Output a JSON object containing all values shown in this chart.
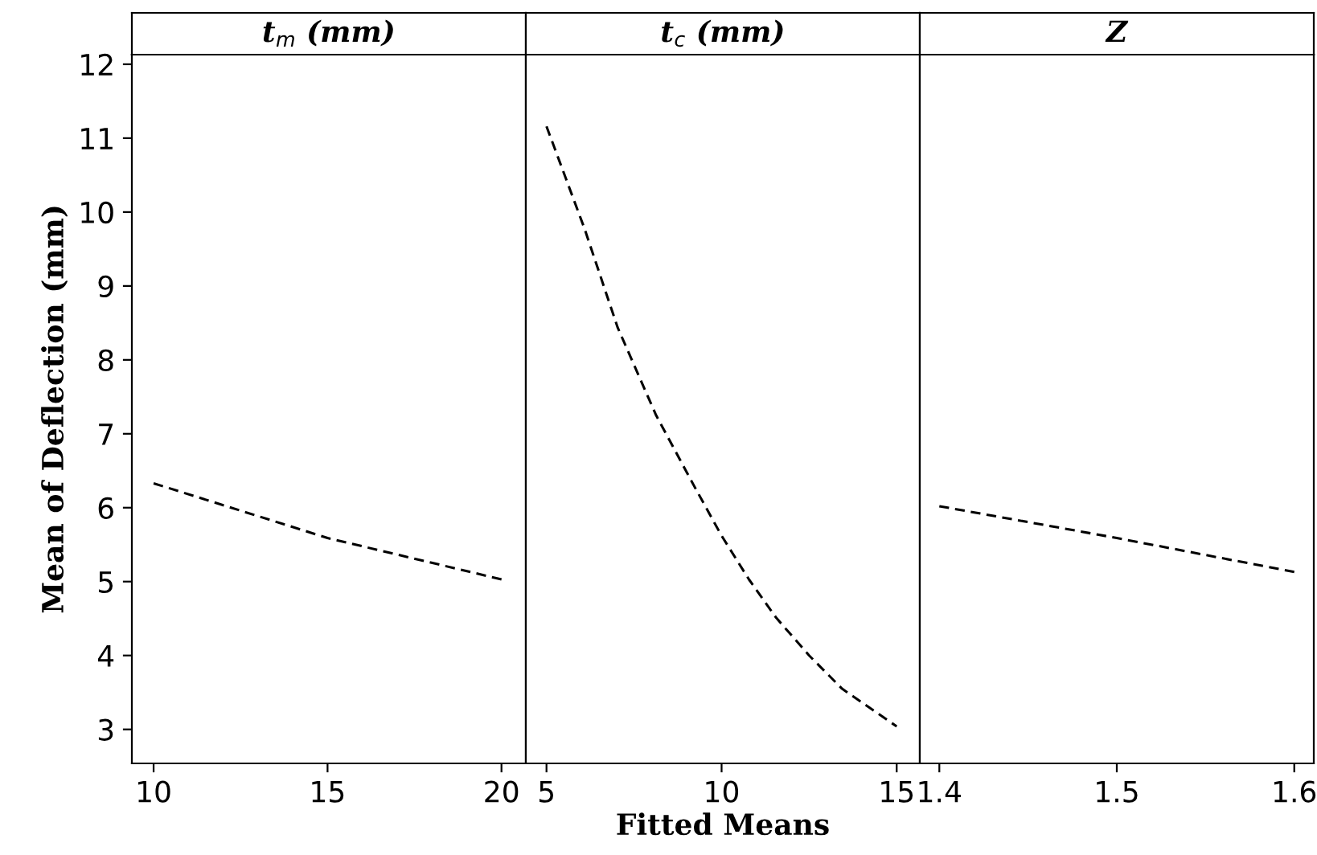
{
  "chart_data": [
    {
      "type": "line",
      "title": "t$_{m}$ (mm)",
      "ylabel": "Mean of Deflection (mm)",
      "x": [
        10,
        15,
        20
      ],
      "series": [
        {
          "color": "#000000",
          "values": [
            6.33,
            5.59,
            5.03
          ]
        }
      ],
      "xlim": [
        9.375,
        20.7
      ],
      "xticks": [
        10,
        15,
        20
      ],
      "ylim": [
        2.54,
        12.13
      ],
      "yticks": [
        3,
        4,
        5,
        6,
        7,
        8,
        9,
        10,
        11,
        12
      ],
      "line_style": "dashed",
      "grid": false,
      "legend": false
    },
    {
      "type": "line",
      "title": "t$_{c}$ (mm)",
      "xlabel": "Fitted Means",
      "x": [
        5,
        6.09,
        7.03,
        8.13,
        9.22,
        10,
        10.78,
        11.56,
        12.5,
        13.44,
        15
      ],
      "series": [
        {
          "color": "#000000",
          "values": [
            11.16,
            9.77,
            8.44,
            7.25,
            6.29,
            5.62,
            5.03,
            4.51,
            4.0,
            3.55,
            3.04
          ]
        }
      ],
      "xlim": [
        4.41,
        15.66
      ],
      "xticks": [
        5,
        10,
        15
      ],
      "ylim": [
        2.54,
        12.13
      ],
      "tick_labels": "x",
      "line_style": "dashed",
      "grid": false,
      "legend": false
    },
    {
      "type": "line",
      "title": "Z",
      "x": [
        1.4,
        1.5,
        1.6
      ],
      "series": [
        {
          "color": "#000000",
          "values": [
            6.02,
            5.59,
            5.13
          ]
        }
      ],
      "xlim": [
        1.389,
        1.611
      ],
      "xticks": [
        1.4,
        1.5,
        1.6
      ],
      "ylim": [
        2.54,
        12.13
      ],
      "tick_labels": "x",
      "line_style": "dashed",
      "grid": false,
      "legend": false
    }
  ]
}
